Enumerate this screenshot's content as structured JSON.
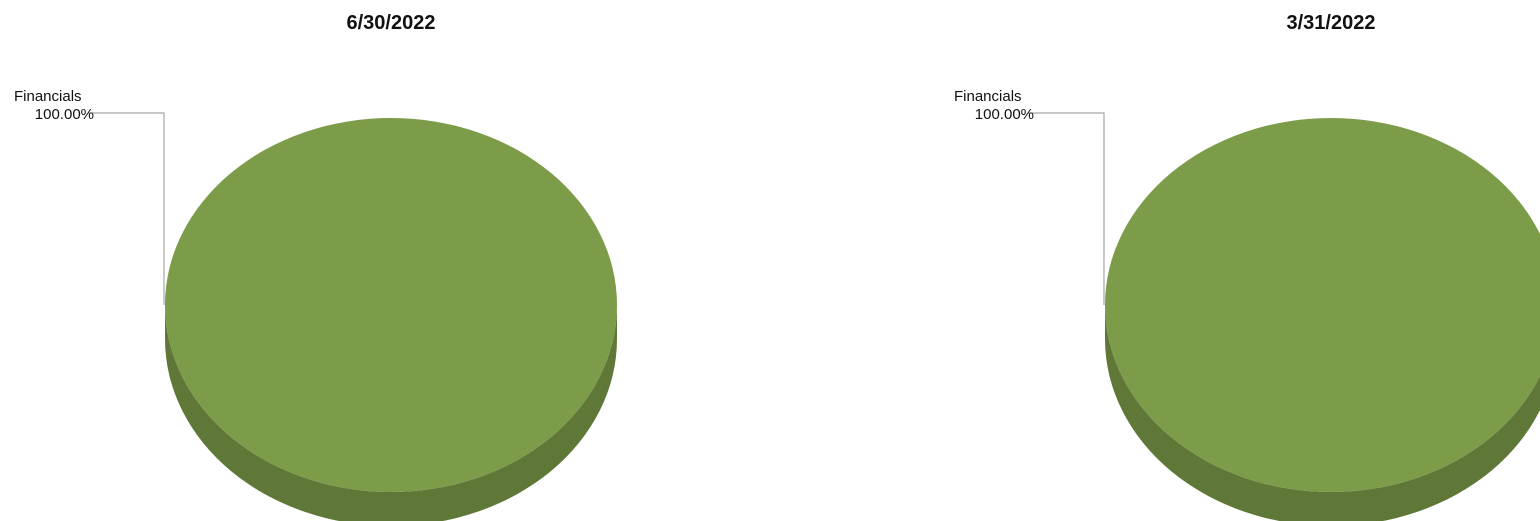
{
  "chart_data": [
    {
      "type": "pie",
      "title": "6/30/2022",
      "categories": [
        "Financials"
      ],
      "values": [
        100.0
      ],
      "labels": [
        "100.00%"
      ],
      "colors": [
        "#7c9c4a"
      ],
      "side_color": "#5f7838",
      "leader_color": "#a6a6a6"
    },
    {
      "type": "pie",
      "title": "3/31/2022",
      "categories": [
        "Financials"
      ],
      "values": [
        100.0
      ],
      "labels": [
        "100.00%"
      ],
      "colors": [
        "#7c9c4a"
      ],
      "side_color": "#5f7838",
      "leader_color": "#a6a6a6"
    }
  ]
}
